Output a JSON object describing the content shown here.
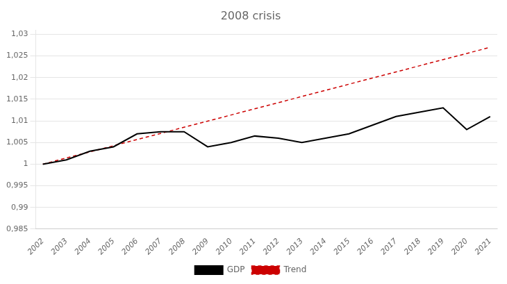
{
  "chart_data": {
    "type": "line",
    "title": "2008 crisis",
    "x": [
      2002,
      2003,
      2004,
      2005,
      2006,
      2007,
      2008,
      2009,
      2010,
      2011,
      2012,
      2013,
      2014,
      2015,
      2016,
      2017,
      2018,
      2019,
      2020,
      2021
    ],
    "series": [
      {
        "name": "GDP",
        "color": "#000000",
        "line_style": "solid",
        "values": [
          1.0,
          1.001,
          1.003,
          1.004,
          1.007,
          1.0075,
          1.0075,
          1.004,
          1.005,
          1.0065,
          1.006,
          1.005,
          1.006,
          1.007,
          1.009,
          1.011,
          1.012,
          1.013,
          1.008,
          1.011
        ]
      },
      {
        "name": "Trend",
        "color": "#cc0000",
        "line_style": "dashed",
        "x": [
          2002,
          2021
        ],
        "values": [
          1.0,
          1.027
        ]
      }
    ],
    "xlim": [
      2001.7,
      2021.3
    ],
    "xticks": [
      2002,
      2003,
      2004,
      2005,
      2006,
      2007,
      2008,
      2009,
      2010,
      2011,
      2012,
      2013,
      2014,
      2015,
      2016,
      2017,
      2018,
      2019,
      2020,
      2021
    ],
    "ylim": [
      0.985,
      1.031
    ],
    "yticks": [
      {
        "value": 0.985,
        "label": "0,985"
      },
      {
        "value": 0.99,
        "label": "0,99"
      },
      {
        "value": 0.995,
        "label": "0,995"
      },
      1,
      {
        "value": 1.005,
        "label": "1,005"
      },
      {
        "value": 1.01,
        "label": "1,01"
      },
      {
        "value": 1.015,
        "label": "1,015"
      },
      {
        "value": 1.02,
        "label": "1,02"
      },
      {
        "value": 1.025,
        "label": "1,025"
      },
      {
        "value": 1.03,
        "label": "1,03"
      }
    ],
    "grid": "y",
    "legend": "bottom"
  }
}
